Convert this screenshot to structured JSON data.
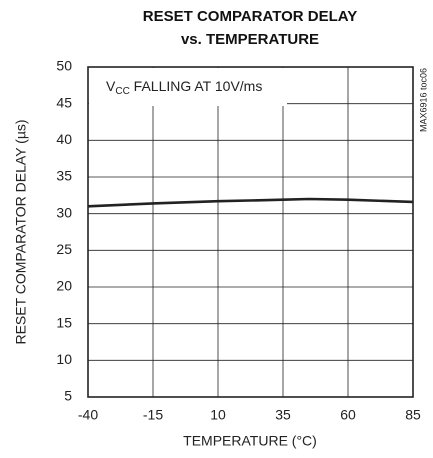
{
  "chart_data": {
    "type": "line",
    "title": [
      "RESET COMPARATOR DELAY",
      "vs. TEMPERATURE"
    ],
    "annotation": {
      "main": "V",
      "subscript": "CC",
      "rest": " FALLING AT 10V/ms"
    },
    "side_note": "MAX6916 toc06",
    "xlabel": "TEMPERATURE (°C)",
    "ylabel": "RESET COMPARATOR DELAY (µs)",
    "x": [
      -40,
      -15,
      10,
      35,
      45,
      60,
      85
    ],
    "series": [
      {
        "name": "delay",
        "color": "#222222",
        "values": [
          31.0,
          31.4,
          31.7,
          31.9,
          32.0,
          31.9,
          31.6
        ]
      }
    ],
    "xlim": [
      -40,
      85
    ],
    "xticks": [
      -40,
      -15,
      10,
      35,
      60,
      85
    ],
    "ylim": [
      5,
      50
    ],
    "yticks": [
      5,
      10,
      15,
      20,
      25,
      30,
      35,
      40,
      45,
      50
    ],
    "grid": true
  }
}
